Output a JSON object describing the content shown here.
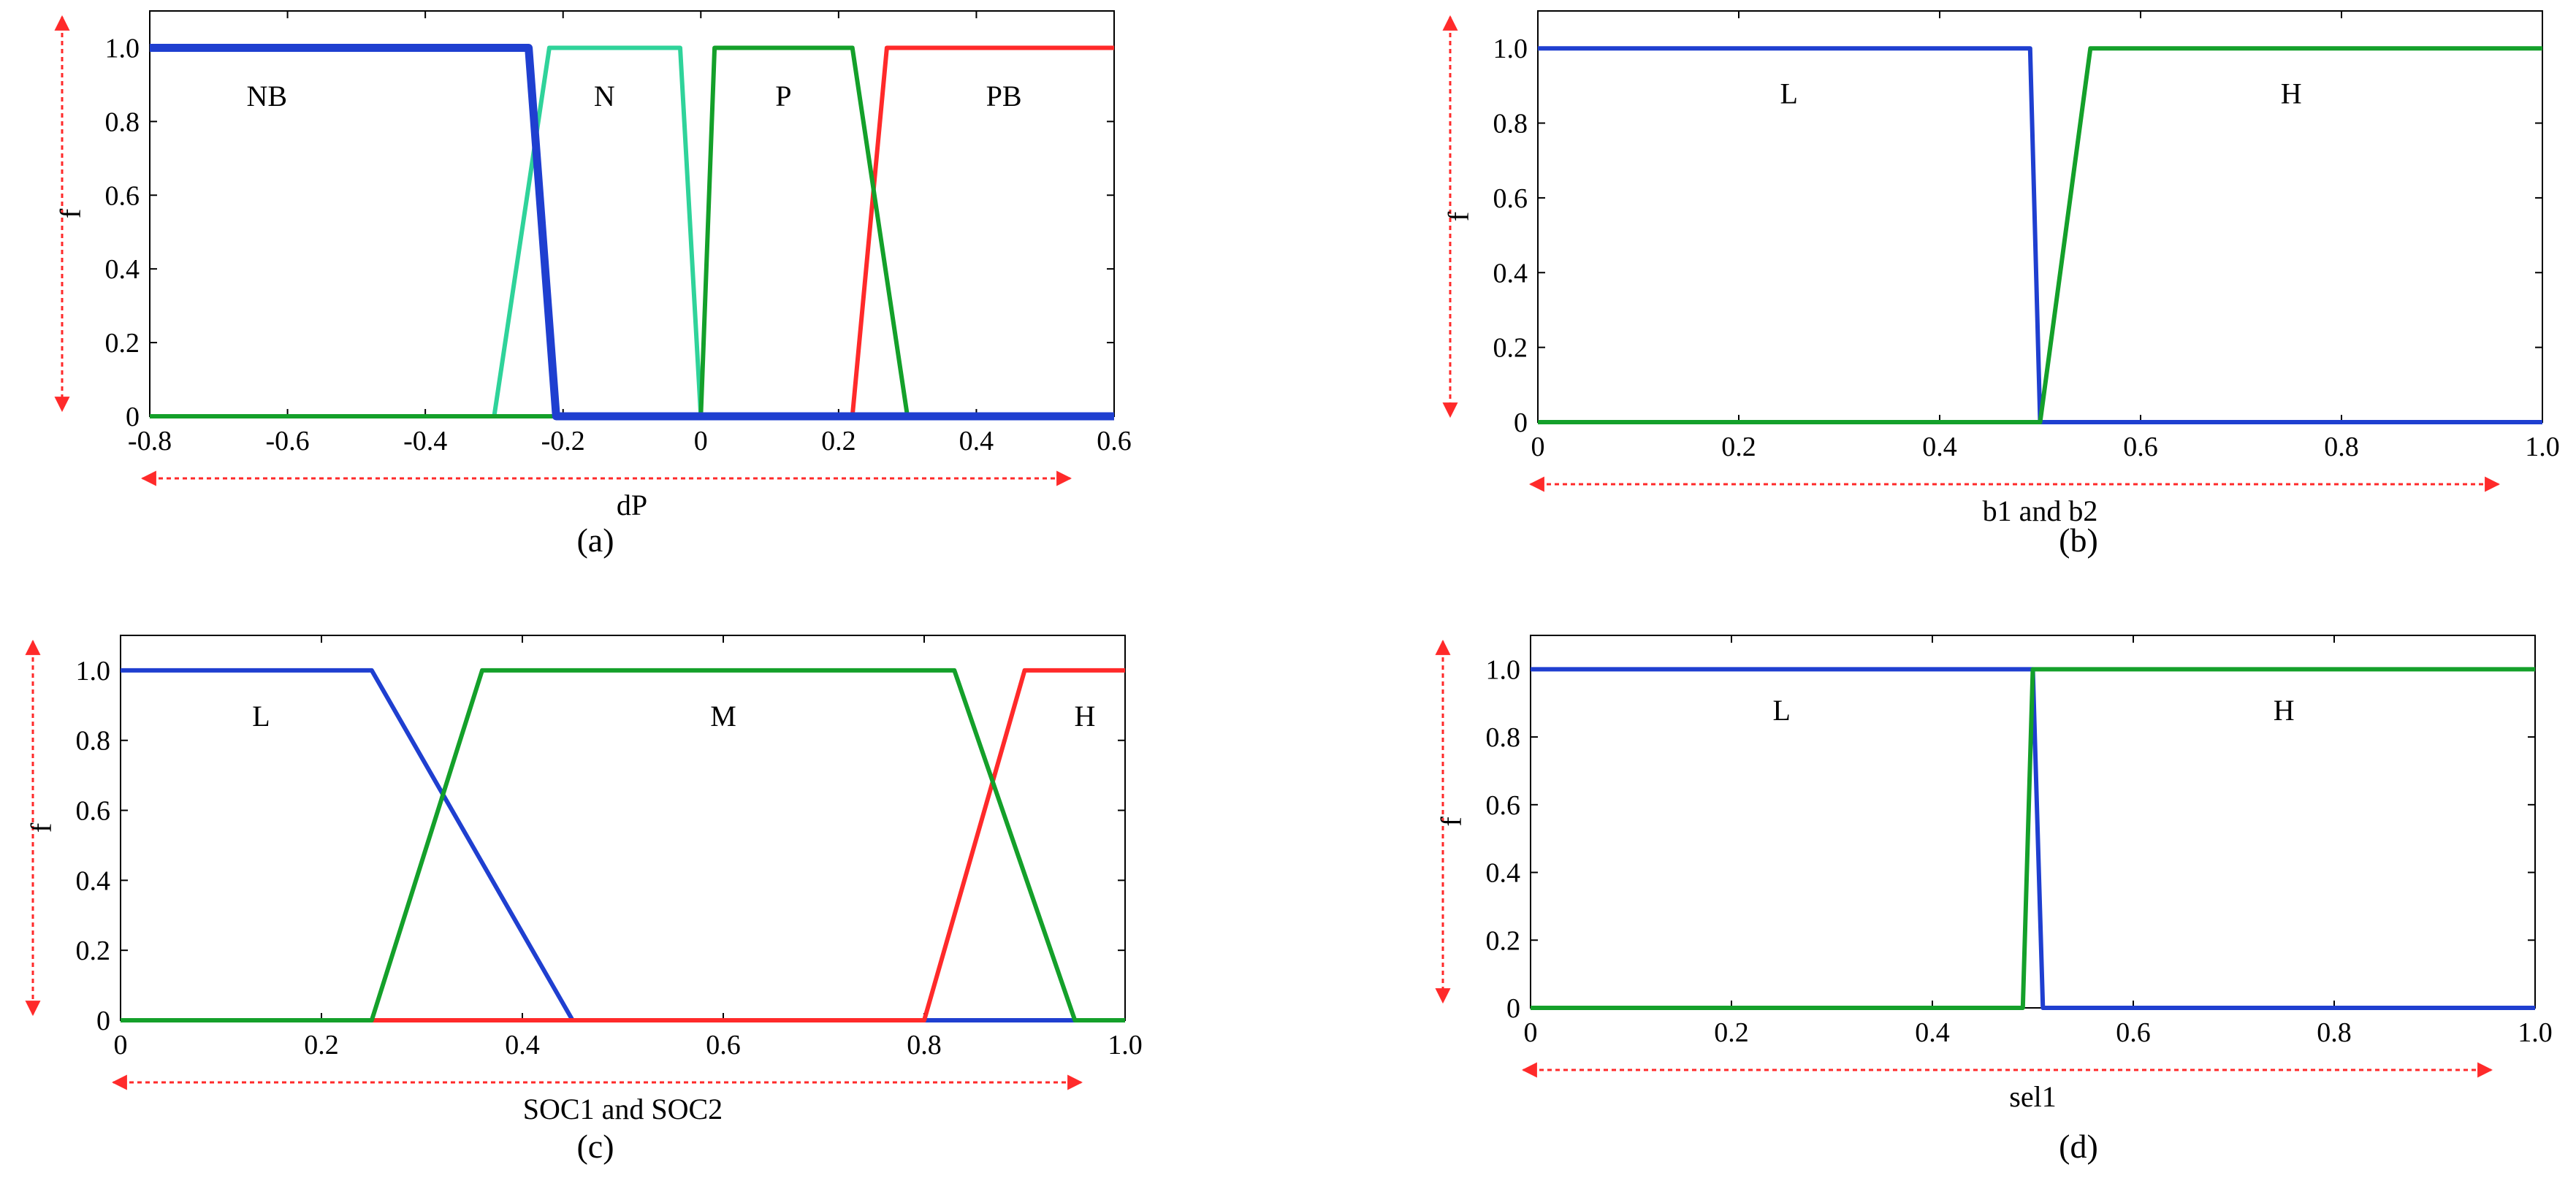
{
  "colors": {
    "blue": "#1f3fd0",
    "teal": "#2fd39a",
    "green": "#14a02a",
    "red": "#ff2a2a",
    "arrow": "#ff2a2a"
  },
  "chart_data": [
    {
      "type": "line",
      "panel_label": "(a)",
      "xlabel": "dP",
      "ylabel": "f",
      "xlim": [
        -0.8,
        0.6
      ],
      "ylim": [
        0,
        1.1
      ],
      "xticks": [
        "-0.8",
        "-0.6",
        "-0.4",
        "-0.2",
        "0",
        "0.2",
        "0.4",
        "0.6"
      ],
      "xtick_values": [
        -0.8,
        -0.6,
        -0.4,
        -0.2,
        0,
        0.2,
        0.4,
        0.6
      ],
      "yticks": [
        "0",
        "0.2",
        "0.4",
        "0.6",
        "0.8",
        "1.0"
      ],
      "ytick_values": [
        0,
        0.2,
        0.4,
        0.6,
        0.8,
        1.0
      ],
      "grid": false,
      "series": [
        {
          "color": "teal",
          "x": [
            -0.8,
            -0.3,
            -0.22,
            -0.03,
            0,
            0.6
          ],
          "y": [
            0,
            0,
            1,
            1,
            0,
            0
          ]
        },
        {
          "color": "red",
          "x": [
            -0.8,
            0.22,
            0.27,
            0.6
          ],
          "y": [
            0,
            0,
            1,
            1
          ]
        },
        {
          "color": "green",
          "x": [
            -0.8,
            0,
            0.02,
            0.22,
            0.3,
            0.6
          ],
          "y": [
            0,
            0,
            1,
            1,
            0,
            0
          ]
        },
        {
          "color": "blue",
          "x": [
            -0.8,
            -0.25,
            -0.21,
            0.6
          ],
          "y": [
            1,
            1,
            0,
            0
          ],
          "thick": true
        }
      ],
      "annotations": [
        {
          "text": "NB",
          "x": -0.63,
          "y": 0.87
        },
        {
          "text": "N",
          "x": -0.14,
          "y": 0.87
        },
        {
          "text": "P",
          "x": 0.12,
          "y": 0.87
        },
        {
          "text": "PB",
          "x": 0.44,
          "y": 0.87
        }
      ]
    },
    {
      "type": "line",
      "panel_label": "(b)",
      "xlabel": "b1 and b2",
      "ylabel": "f",
      "xlim": [
        0,
        1
      ],
      "ylim": [
        0,
        1.1
      ],
      "xticks": [
        "0",
        "0.2",
        "0.4",
        "0.6",
        "0.8",
        "1.0"
      ],
      "xtick_values": [
        0,
        0.2,
        0.4,
        0.6,
        0.8,
        1.0
      ],
      "yticks": [
        "0",
        "0.2",
        "0.4",
        "0.6",
        "0.8",
        "1.0"
      ],
      "ytick_values": [
        0,
        0.2,
        0.4,
        0.6,
        0.8,
        1.0
      ],
      "grid": false,
      "series": [
        {
          "color": "blue",
          "x": [
            0,
            0.49,
            0.5,
            1.0
          ],
          "y": [
            1,
            1,
            0,
            0
          ]
        },
        {
          "color": "green",
          "x": [
            0,
            0.5,
            0.55,
            1.0
          ],
          "y": [
            0,
            0,
            1,
            1
          ]
        }
      ],
      "annotations": [
        {
          "text": "L",
          "x": 0.25,
          "y": 0.88
        },
        {
          "text": "H",
          "x": 0.75,
          "y": 0.88
        }
      ]
    },
    {
      "type": "line",
      "panel_label": "(c)",
      "xlabel": "SOC1 and SOC2",
      "ylabel": "f",
      "xlim": [
        0,
        1
      ],
      "ylim": [
        0,
        1.1
      ],
      "xticks": [
        "0",
        "0.2",
        "0.4",
        "0.6",
        "0.8",
        "1.0"
      ],
      "xtick_values": [
        0,
        0.2,
        0.4,
        0.6,
        0.8,
        1.0
      ],
      "yticks": [
        "0",
        "0.2",
        "0.4",
        "0.6",
        "0.8",
        "1.0"
      ],
      "ytick_values": [
        0,
        0.2,
        0.4,
        0.6,
        0.8,
        1.0
      ],
      "grid": false,
      "series": [
        {
          "color": "blue",
          "x": [
            0,
            0.25,
            0.45,
            1.0
          ],
          "y": [
            1,
            1,
            0,
            0
          ]
        },
        {
          "color": "red",
          "x": [
            0,
            0.8,
            0.9,
            1.0
          ],
          "y": [
            0,
            0,
            1,
            1
          ]
        },
        {
          "color": "green",
          "x": [
            0,
            0.25,
            0.36,
            0.83,
            0.95,
            1.0
          ],
          "y": [
            0,
            0,
            1,
            1,
            0,
            0
          ]
        }
      ],
      "annotations": [
        {
          "text": "L",
          "x": 0.14,
          "y": 0.87
        },
        {
          "text": "M",
          "x": 0.6,
          "y": 0.87
        },
        {
          "text": "H",
          "x": 0.96,
          "y": 0.87
        }
      ]
    },
    {
      "type": "line",
      "panel_label": "(d)",
      "xlabel": "sel1",
      "ylabel": "f",
      "xlim": [
        0,
        1
      ],
      "ylim": [
        0,
        1.1
      ],
      "xticks": [
        "0",
        "0.2",
        "0.4",
        "0.6",
        "0.8",
        "1.0"
      ],
      "xtick_values": [
        0,
        0.2,
        0.4,
        0.6,
        0.8,
        1.0
      ],
      "yticks": [
        "0",
        "0.2",
        "0.4",
        "0.6",
        "0.8",
        "1.0"
      ],
      "ytick_values": [
        0,
        0.2,
        0.4,
        0.6,
        0.8,
        1.0
      ],
      "grid": false,
      "series": [
        {
          "color": "blue",
          "x": [
            0,
            0.5,
            0.51,
            1.0
          ],
          "y": [
            1,
            1,
            0,
            0
          ]
        },
        {
          "color": "green",
          "x": [
            0,
            0.49,
            0.5,
            1.0
          ],
          "y": [
            0,
            0,
            1,
            1
          ]
        }
      ],
      "annotations": [
        {
          "text": "L",
          "x": 0.25,
          "y": 0.88
        },
        {
          "text": "H",
          "x": 0.75,
          "y": 0.88
        }
      ]
    }
  ]
}
